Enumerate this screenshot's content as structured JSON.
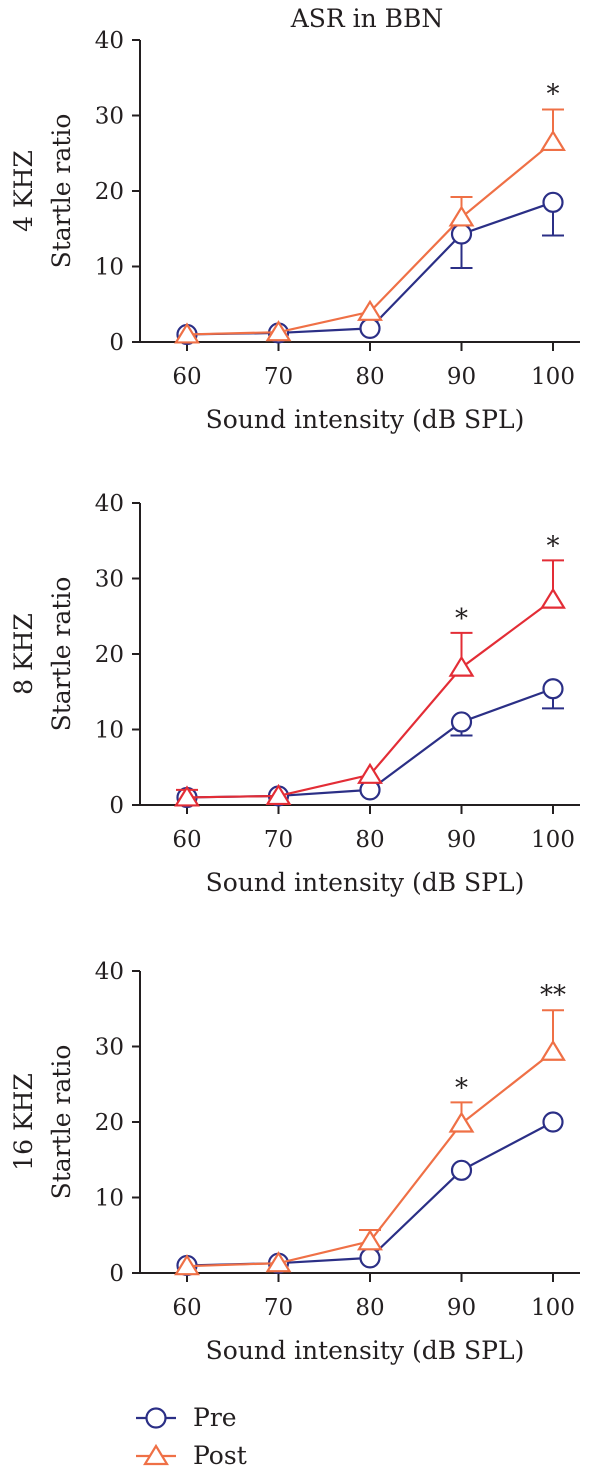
{
  "figure_title": "ASR in BBN",
  "legend": [
    {
      "label": "Pre",
      "marker": "circle",
      "color": "#2b2f86"
    },
    {
      "label": "Post",
      "marker": "triangle",
      "color": "#ef7046"
    }
  ],
  "chart_data": [
    {
      "type": "line",
      "panel_label": "4 KHZ",
      "title": "ASR in BBN",
      "xlabel": "Sound intensity (dB SPL)",
      "ylabel": "Startle ratio",
      "x": [
        60,
        70,
        80,
        90,
        100
      ],
      "xticks": [
        60,
        70,
        80,
        90,
        100
      ],
      "ylim": [
        0,
        40
      ],
      "yticks": [
        0,
        10,
        20,
        30,
        40
      ],
      "grid": false,
      "series": [
        {
          "name": "Pre",
          "marker": "circle",
          "color": "#2b2f86",
          "values": [
            1.0,
            1.2,
            1.8,
            14.3,
            18.5
          ],
          "error": [
            0,
            0,
            0,
            4.5,
            4.4
          ],
          "error_dir": "down"
        },
        {
          "name": "Post",
          "marker": "triangle",
          "color": "#ef7046",
          "values": [
            1.0,
            1.3,
            4.0,
            16.5,
            26.5
          ],
          "error": [
            0,
            0,
            0,
            2.7,
            4.3
          ],
          "error_dir": "up"
        }
      ],
      "annotations": [
        {
          "x": 100,
          "y": 30.9,
          "text": "*"
        }
      ]
    },
    {
      "type": "line",
      "panel_label": "8 KHZ",
      "xlabel": "Sound intensity (dB SPL)",
      "ylabel": "Startle ratio",
      "x": [
        60,
        70,
        80,
        90,
        100
      ],
      "xticks": [
        60,
        70,
        80,
        90,
        100
      ],
      "ylim": [
        0,
        40
      ],
      "yticks": [
        0,
        10,
        20,
        30,
        40
      ],
      "grid": false,
      "series": [
        {
          "name": "Pre",
          "marker": "circle",
          "color": "#2b2f86",
          "values": [
            1.0,
            1.2,
            2.0,
            11.0,
            15.4
          ],
          "error": [
            0,
            0,
            0,
            1.8,
            2.6
          ],
          "error_dir": "down"
        },
        {
          "name": "Post",
          "marker": "triangle",
          "color": "#e32d36",
          "values": [
            1.0,
            1.2,
            4.0,
            18.2,
            27.2
          ],
          "error": [
            1.0,
            0,
            0,
            4.6,
            5.2
          ],
          "error_dir": "up"
        }
      ],
      "annotations": [
        {
          "x": 90,
          "y": 22.8,
          "text": "*"
        },
        {
          "x": 100,
          "y": 32.4,
          "text": "*"
        }
      ]
    },
    {
      "type": "line",
      "panel_label": "16 KHZ",
      "xlabel": "Sound intensity (dB SPL)",
      "ylabel": "Startle ratio",
      "x": [
        60,
        70,
        80,
        90,
        100
      ],
      "xticks": [
        60,
        70,
        80,
        90,
        100
      ],
      "ylim": [
        0,
        40
      ],
      "yticks": [
        0,
        10,
        20,
        30,
        40
      ],
      "grid": false,
      "series": [
        {
          "name": "Pre",
          "marker": "circle",
          "color": "#2b2f86",
          "values": [
            1.0,
            1.3,
            2.0,
            13.6,
            20.0
          ],
          "error": [
            0,
            0,
            0,
            0,
            0
          ],
          "error_dir": "down"
        },
        {
          "name": "Post",
          "marker": "triangle",
          "color": "#ef7046",
          "values": [
            0.9,
            1.3,
            4.2,
            19.8,
            29.3
          ],
          "error": [
            0,
            0,
            1.5,
            2.8,
            5.5
          ],
          "error_dir": "up"
        }
      ],
      "annotations": [
        {
          "x": 90,
          "y": 22.6,
          "text": "*"
        },
        {
          "x": 100,
          "y": 34.9,
          "text": "**"
        }
      ]
    }
  ]
}
